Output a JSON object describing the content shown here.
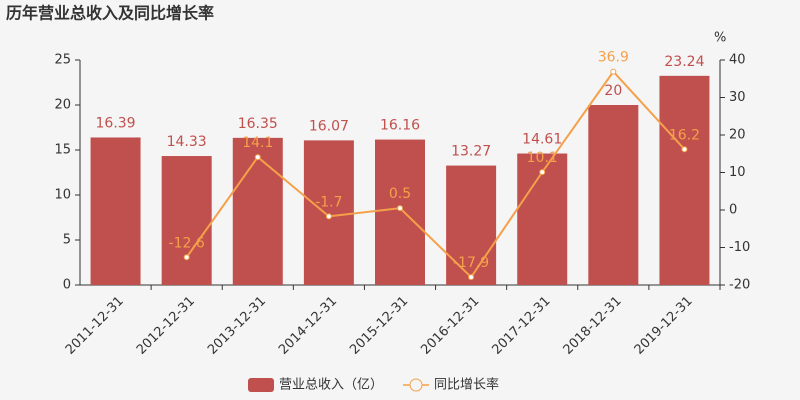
{
  "chart_data": {
    "type": "bar",
    "title": "历年营业总收入及同比增长率",
    "categories": [
      "2011-12-31",
      "2012-12-31",
      "2013-12-31",
      "2014-12-31",
      "2015-12-31",
      "2016-12-31",
      "2017-12-31",
      "2018-12-31",
      "2019-12-31"
    ],
    "series": [
      {
        "name": "营业总收入（亿）",
        "type": "bar",
        "color": "#c0504d",
        "values": [
          16.39,
          14.33,
          16.35,
          16.07,
          16.16,
          13.27,
          14.61,
          20,
          23.24
        ]
      },
      {
        "name": "同比增长率",
        "type": "line",
        "axis": "y2",
        "color": "#f5a04a",
        "values": [
          null,
          -12.6,
          14.1,
          -1.7,
          0.5,
          -17.9,
          10.1,
          36.9,
          16.2
        ]
      }
    ],
    "ylim": [
      0,
      25
    ],
    "yticks": [
      0,
      5,
      10,
      15,
      20,
      25
    ],
    "y2lim": [
      -20,
      40
    ],
    "y2ticks": [
      -20,
      -10,
      0,
      10,
      20,
      30,
      40
    ],
    "y2label": "%",
    "legend": "bottom"
  }
}
